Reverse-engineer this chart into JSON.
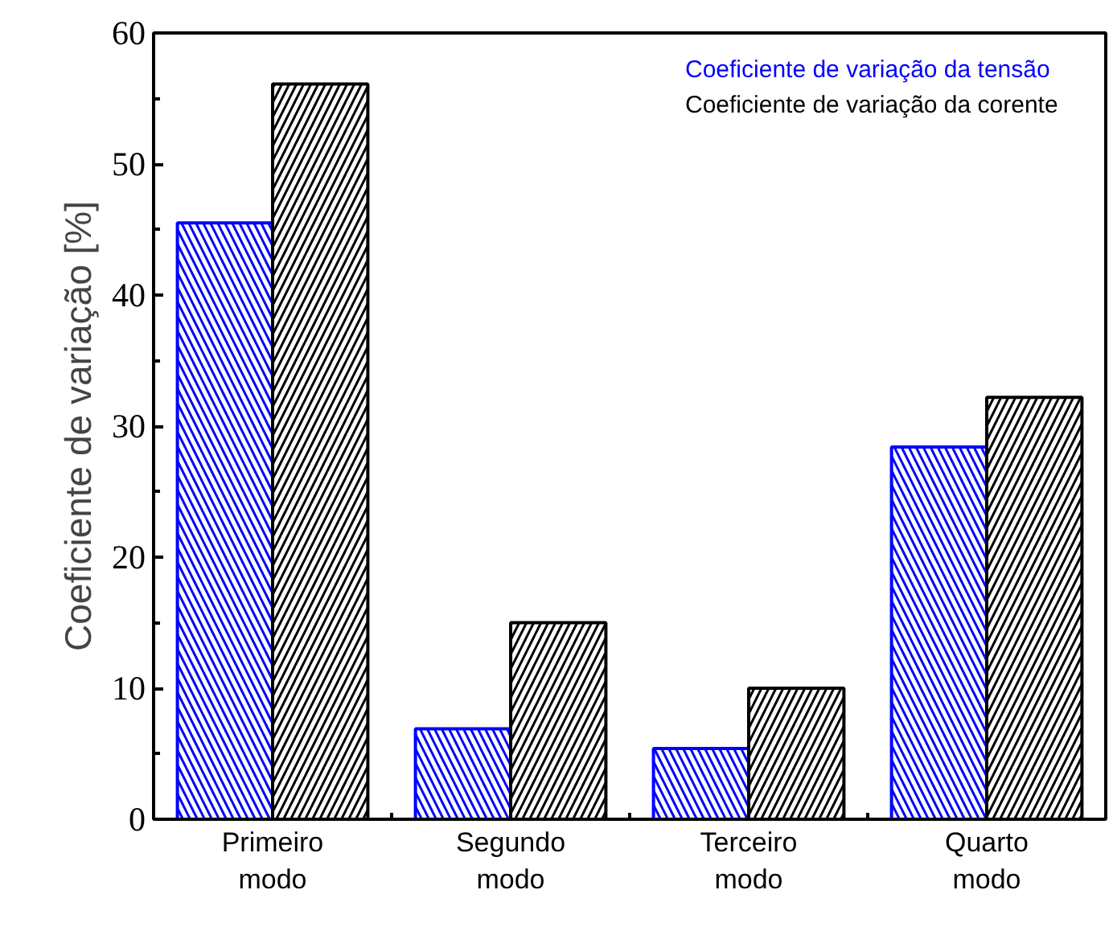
{
  "chart_data": {
    "type": "bar",
    "ylabel": "Coeficiente de variação [%]",
    "categories": [
      "Primeiro\nmodo",
      "Segundo\nmodo",
      "Terceiro\nmodo",
      "Quarto\nmodo"
    ],
    "series": [
      {
        "name": "Coeficiente de variação da tensão",
        "color": "#0000ff",
        "values": [
          45.5,
          6.9,
          5.4,
          28.4
        ]
      },
      {
        "name": "Coeficiente de variação da corente",
        "color": "#000000",
        "values": [
          56.1,
          15.0,
          10.0,
          32.2
        ]
      }
    ],
    "ylim": [
      0,
      60
    ],
    "yticks": [
      0,
      10,
      20,
      30,
      40,
      50,
      60
    ],
    "grid": false,
    "legend": "top right"
  }
}
